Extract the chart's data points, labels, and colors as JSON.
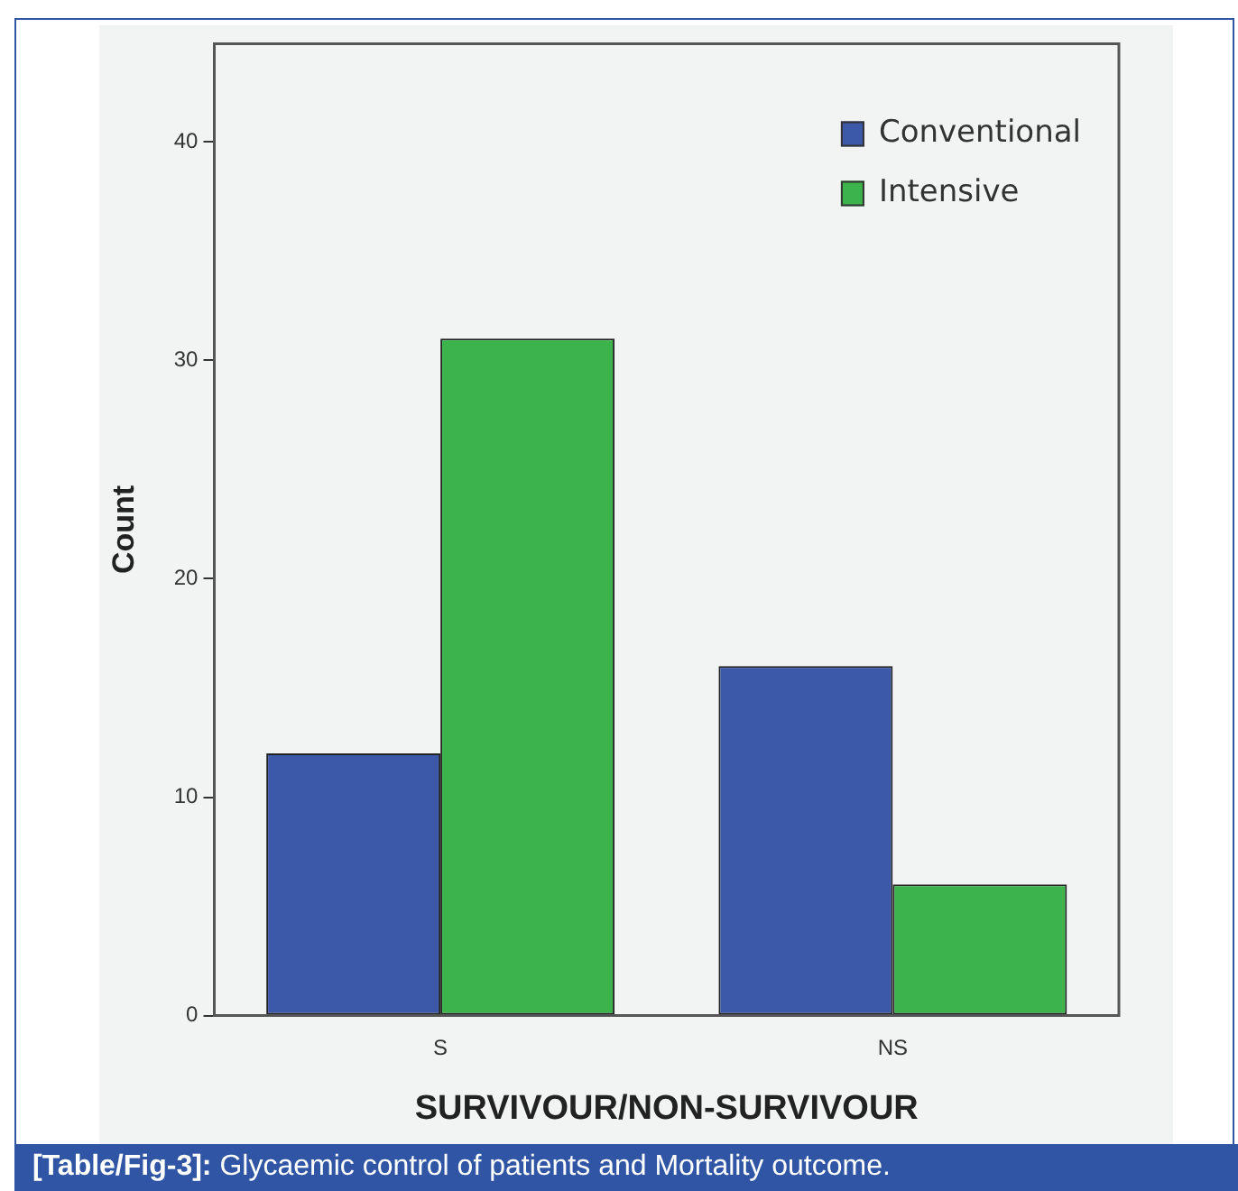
{
  "chart_data": {
    "type": "bar",
    "xlabel": "SURVIVOUR/NON-SURVIVOUR",
    "ylabel": "Count",
    "categories": [
      "S",
      "NS"
    ],
    "series": [
      {
        "name": "Conventional",
        "color": "#3c58a8",
        "values": [
          12,
          16
        ]
      },
      {
        "name": "Intensive",
        "color": "#3cb44b",
        "values": [
          31,
          6
        ]
      }
    ],
    "ylim": [
      0,
      44.5
    ],
    "yticks": [
      0,
      10,
      20,
      30,
      40
    ],
    "grid": false,
    "legend": "top right",
    "annotations": [
      "[Table/Fig-3]: Glycaemic control of patients and Mortality outcome."
    ]
  }
}
